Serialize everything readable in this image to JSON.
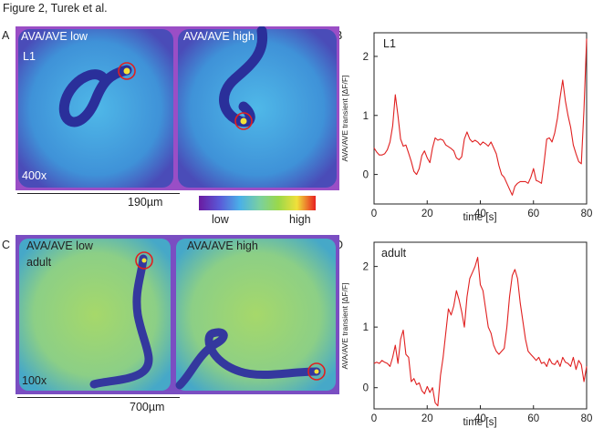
{
  "figure_title": "Figure 2, Turek et al.",
  "panels": {
    "A": {
      "label": "A",
      "left_title": "AVA/AVE low",
      "stage": "L1",
      "right_title": "AVA/AVE high",
      "magnification": "400x",
      "scale": "190µm"
    },
    "C": {
      "label": "C",
      "left_title": "AVA/AVE low",
      "stage": "adult",
      "right_title": "AVA/AVE high",
      "magnification": "100x",
      "scale": "700µm"
    }
  },
  "colorbar": {
    "low": "low",
    "high": "high"
  },
  "chart_data": [
    {
      "type": "line",
      "panel_label": "B",
      "inset_label": "L1",
      "xlabel": "time [s]",
      "ylabel": "AVA/AVE transient [ΔF/F]",
      "xlim": [
        0,
        80
      ],
      "ylim": [
        -0.5,
        2.4
      ],
      "xticks": [
        "0",
        "20",
        "40",
        "60",
        "80"
      ],
      "yticks": [
        "0",
        "1",
        "2"
      ],
      "color": "#e02020",
      "x": [
        0,
        1,
        2,
        3,
        4,
        5,
        6,
        7,
        8,
        9,
        10,
        11,
        12,
        13,
        14,
        15,
        16,
        17,
        18,
        19,
        20,
        21,
        22,
        23,
        24,
        25,
        26,
        27,
        28,
        29,
        30,
        31,
        32,
        33,
        34,
        35,
        36,
        37,
        38,
        39,
        40,
        41,
        42,
        43,
        44,
        45,
        46,
        47,
        48,
        49,
        50,
        51,
        52,
        53,
        54,
        55,
        56,
        57,
        58,
        59,
        60,
        61,
        62,
        63,
        64,
        65,
        66,
        67,
        68,
        69,
        70,
        71,
        72,
        73,
        74,
        75,
        76,
        77,
        78,
        79,
        80
      ],
      "y": [
        0.45,
        0.38,
        0.33,
        0.33,
        0.35,
        0.42,
        0.55,
        0.82,
        1.35,
        1.0,
        0.6,
        0.48,
        0.5,
        0.36,
        0.22,
        0.05,
        0.0,
        0.1,
        0.32,
        0.4,
        0.28,
        0.2,
        0.45,
        0.62,
        0.58,
        0.6,
        0.58,
        0.5,
        0.47,
        0.44,
        0.4,
        0.28,
        0.25,
        0.3,
        0.6,
        0.72,
        0.6,
        0.55,
        0.58,
        0.55,
        0.5,
        0.55,
        0.52,
        0.48,
        0.55,
        0.45,
        0.35,
        0.15,
        0.0,
        -0.05,
        -0.15,
        -0.25,
        -0.35,
        -0.2,
        -0.15,
        -0.12,
        -0.12,
        -0.12,
        -0.15,
        -0.05,
        0.1,
        -0.1,
        -0.12,
        -0.15,
        0.2,
        0.6,
        0.62,
        0.55,
        0.7,
        0.95,
        1.3,
        1.6,
        1.25,
        1.0,
        0.8,
        0.5,
        0.35,
        0.22,
        0.18,
        1.1,
        2.3
      ]
    },
    {
      "type": "line",
      "panel_label": "D",
      "inset_label": "adult",
      "xlabel": "time [s]",
      "ylabel": "AVA/AVE transient [ΔF/F]",
      "xlim": [
        0,
        80
      ],
      "ylim": [
        -0.35,
        2.4
      ],
      "xticks": [
        "0",
        "20",
        "40",
        "60",
        "80"
      ],
      "yticks": [
        "0",
        "1",
        "2"
      ],
      "color": "#e02020",
      "x": [
        0,
        1,
        2,
        3,
        4,
        5,
        6,
        7,
        8,
        9,
        10,
        11,
        12,
        13,
        14,
        15,
        16,
        17,
        18,
        19,
        20,
        21,
        22,
        23,
        24,
        25,
        26,
        27,
        28,
        29,
        30,
        31,
        32,
        33,
        34,
        35,
        36,
        37,
        38,
        39,
        40,
        41,
        42,
        43,
        44,
        45,
        46,
        47,
        48,
        49,
        50,
        51,
        52,
        53,
        54,
        55,
        56,
        57,
        58,
        59,
        60,
        61,
        62,
        63,
        64,
        65,
        66,
        67,
        68,
        69,
        70,
        71,
        72,
        73,
        74,
        75,
        76,
        77,
        78,
        79,
        80
      ],
      "y": [
        0.4,
        0.42,
        0.4,
        0.45,
        0.42,
        0.4,
        0.35,
        0.5,
        0.7,
        0.4,
        0.8,
        0.95,
        0.55,
        0.5,
        0.1,
        0.15,
        0.05,
        0.08,
        -0.05,
        -0.1,
        0.02,
        -0.08,
        0.0,
        -0.25,
        -0.3,
        0.2,
        0.5,
        0.9,
        1.3,
        1.2,
        1.35,
        1.6,
        1.45,
        1.25,
        1.0,
        1.5,
        1.8,
        1.9,
        2.0,
        2.15,
        1.7,
        1.6,
        1.3,
        1.0,
        0.9,
        0.7,
        0.6,
        0.55,
        0.6,
        0.65,
        1.0,
        1.5,
        1.85,
        1.95,
        1.8,
        1.4,
        1.1,
        0.8,
        0.6,
        0.55,
        0.5,
        0.45,
        0.5,
        0.4,
        0.42,
        0.35,
        0.48,
        0.4,
        0.38,
        0.45,
        0.35,
        0.5,
        0.42,
        0.4,
        0.35,
        0.5,
        0.3,
        0.45,
        0.38,
        0.1,
        0.35
      ]
    }
  ]
}
